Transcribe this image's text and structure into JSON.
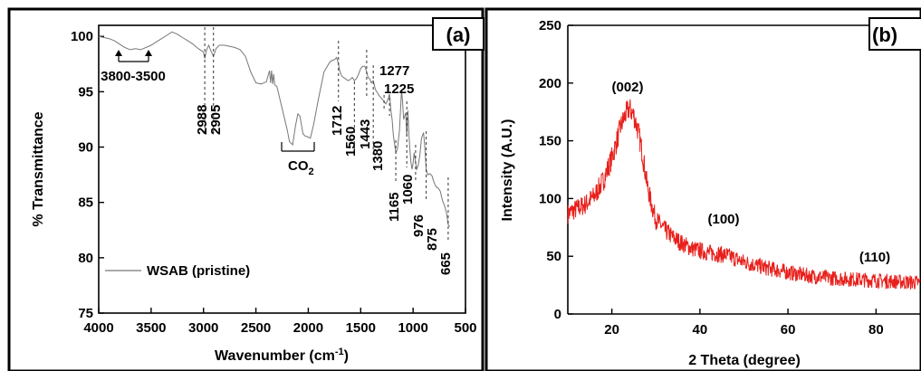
{
  "chart_data": [
    {
      "panel_label": "(a)",
      "type": "line",
      "xlabel": "Wavenumber (cm",
      "xlabel_sup": "-1",
      "xlabel_end": ")",
      "ylabel": "% Transmittance",
      "xlim": [
        4000,
        500
      ],
      "ylim": [
        75,
        101
      ],
      "xticks": [
        4000,
        3500,
        3000,
        2500,
        2000,
        1500,
        1000,
        500
      ],
      "yticks": [
        75,
        80,
        85,
        90,
        95,
        100
      ],
      "grid": false,
      "legend_position": "lower-left",
      "line_color": "#777777",
      "series": [
        {
          "name": "WSAB (pristine)",
          "x": [
            4000,
            3900,
            3850,
            3800,
            3750,
            3700,
            3650,
            3600,
            3550,
            3500,
            3450,
            3400,
            3350,
            3300,
            3250,
            3200,
            3150,
            3100,
            3050,
            3000,
            2988,
            2970,
            2950,
            2930,
            2905,
            2880,
            2850,
            2800,
            2750,
            2700,
            2650,
            2600,
            2550,
            2500,
            2450,
            2400,
            2370,
            2360,
            2350,
            2340,
            2330,
            2320,
            2300,
            2250,
            2200,
            2180,
            2150,
            2120,
            2100,
            2080,
            2050,
            2030,
            2000,
            1980,
            1950,
            1900,
            1850,
            1800,
            1780,
            1750,
            1730,
            1712,
            1700,
            1680,
            1650,
            1620,
            1600,
            1580,
            1560,
            1540,
            1520,
            1500,
            1480,
            1460,
            1443,
            1430,
            1410,
            1400,
            1390,
            1380,
            1370,
            1360,
            1340,
            1320,
            1300,
            1277,
            1260,
            1240,
            1225,
            1210,
            1200,
            1190,
            1180,
            1165,
            1150,
            1130,
            1110,
            1100,
            1090,
            1080,
            1070,
            1060,
            1050,
            1040,
            1030,
            1020,
            1010,
            1000,
            990,
            976,
            965,
            950,
            935,
            920,
            900,
            890,
            875,
            860,
            840,
            820,
            800,
            780,
            760,
            740,
            720,
            700,
            680,
            665,
            650
          ],
          "y": [
            100.0,
            99.8,
            99.6,
            99.3,
            99.0,
            98.8,
            98.9,
            98.8,
            99.0,
            99.2,
            99.5,
            99.8,
            100.1,
            100.4,
            100.2,
            99.9,
            99.6,
            99.3,
            98.9,
            98.6,
            98.0,
            98.8,
            99.2,
            98.7,
            98.2,
            98.9,
            99.2,
            99.2,
            99.1,
            99.0,
            98.8,
            98.2,
            96.8,
            95.8,
            95.7,
            95.9,
            96.9,
            95.8,
            96.9,
            95.7,
            96.6,
            95.6,
            95.5,
            93.5,
            91.5,
            90.5,
            90.2,
            92.0,
            93.0,
            92.8,
            91.2,
            91.0,
            90.9,
            90.8,
            92.0,
            94.5,
            96.8,
            97.6,
            97.8,
            97.9,
            98.1,
            97.5,
            96.9,
            96.4,
            96.2,
            96.0,
            96.1,
            96.3,
            96.0,
            96.2,
            96.6,
            97.1,
            97.3,
            97.3,
            96.8,
            96.3,
            96.1,
            95.8,
            95.9,
            96.0,
            95.6,
            95.2,
            94.9,
            94.6,
            94.4,
            94.1,
            93.9,
            94.3,
            94.8,
            93.2,
            92.5,
            91.2,
            90.5,
            89.5,
            89.8,
            91.5,
            95.2,
            94.0,
            92.5,
            92.8,
            93.1,
            91.0,
            93.3,
            91.2,
            89.7,
            88.6,
            88.0,
            88.5,
            89.5,
            88.6,
            88.0,
            88.4,
            89.3,
            90.8,
            91.3,
            90.2,
            88.0,
            87.5,
            87.6,
            87.4,
            86.8,
            86.4,
            86.3,
            86.0,
            85.2,
            84.7,
            84.0,
            83.0,
            82.8
          ]
        }
      ],
      "annotations": [
        "3800-3500",
        "2988",
        "2905",
        "CO",
        "2",
        "1712",
        "1560",
        "1443",
        "1380",
        "1277",
        "1225",
        "1165",
        "1060",
        "976",
        "875",
        "665"
      ]
    },
    {
      "panel_label": "(b)",
      "type": "line",
      "xlabel": "2 Theta (degree)",
      "ylabel": "Intensity (A.U.)",
      "xlim": [
        10,
        90
      ],
      "ylim": [
        0,
        250
      ],
      "xticks": [
        20,
        40,
        60,
        80
      ],
      "yticks": [
        0,
        50,
        100,
        150,
        200,
        250
      ],
      "grid": false,
      "line_color": "#e8201c",
      "series": [
        {
          "x": [
            10,
            12,
            14,
            16,
            18,
            20,
            21,
            22,
            23,
            24,
            25,
            26,
            27,
            28,
            29,
            30,
            32,
            34,
            36,
            38,
            40,
            42,
            44,
            46,
            48,
            50,
            55,
            60,
            65,
            70,
            75,
            80,
            85,
            90
          ],
          "y": [
            87,
            91,
            95,
            102,
            115,
            135,
            148,
            162,
            172,
            178,
            172,
            158,
            138,
            112,
            95,
            82,
            73,
            66,
            61,
            57,
            55,
            53,
            52,
            51,
            48,
            45,
            40,
            36,
            33,
            31,
            30,
            29,
            28,
            27
          ],
          "noise": 10
        }
      ],
      "annotations": [
        "(002)",
        "(100)",
        "(110)"
      ]
    }
  ]
}
